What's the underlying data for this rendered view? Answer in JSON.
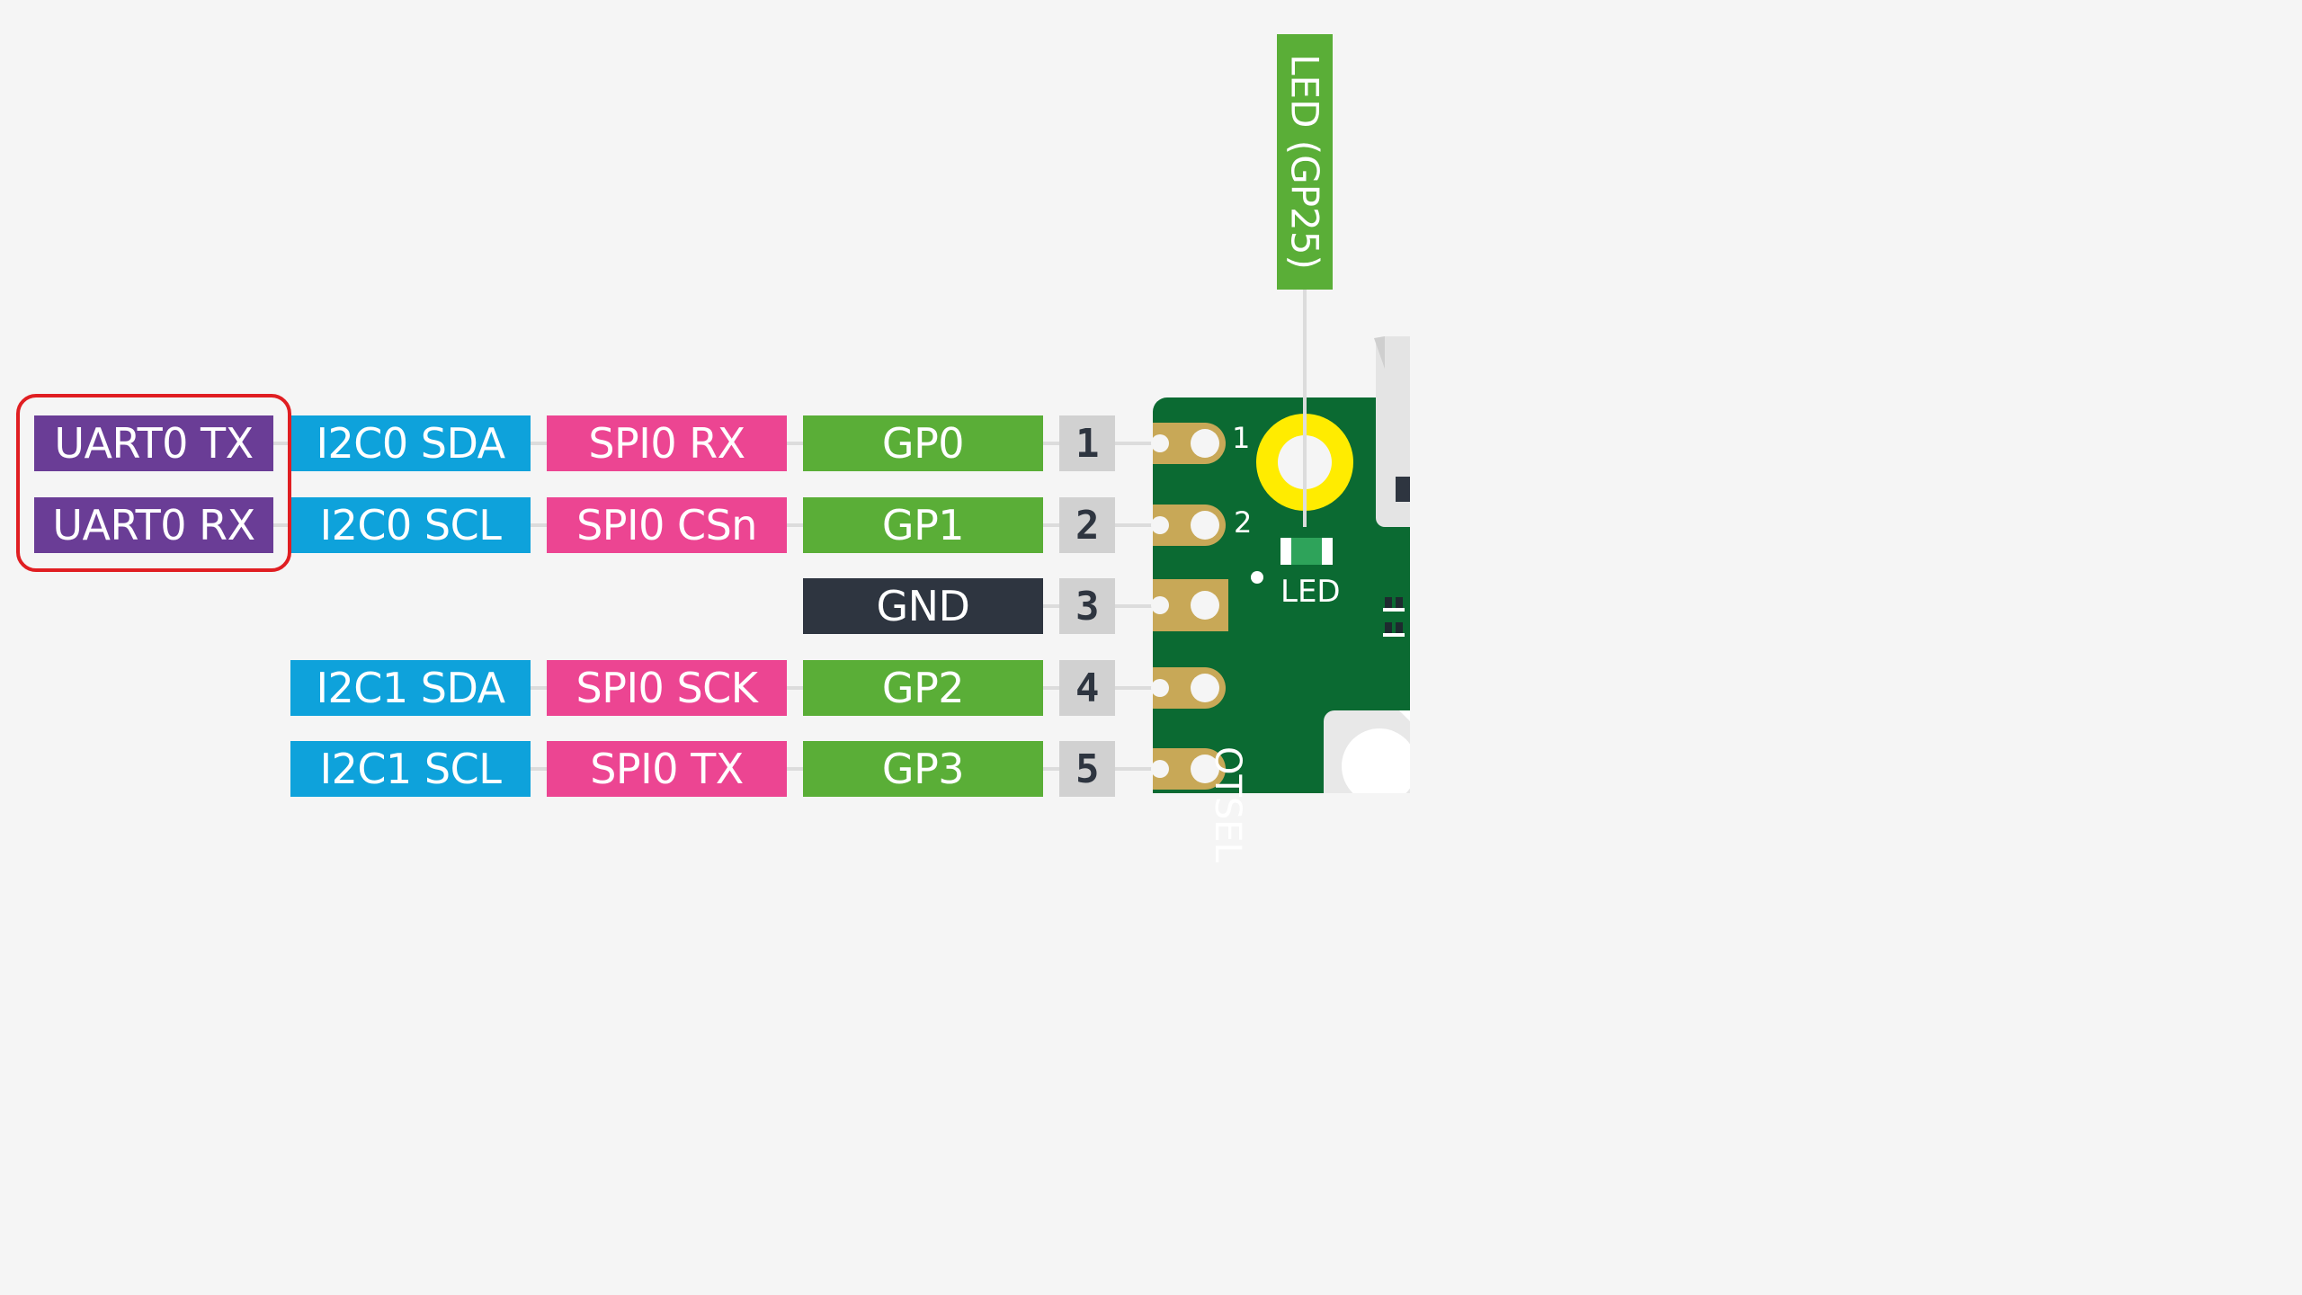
{
  "colors": {
    "uart": "#6a3d96",
    "i2c": "#0ea2db",
    "spi": "#ec4592",
    "gpio": "#5aae37",
    "ground": "#2e3540",
    "pin_number_bg": "#d1d1d1",
    "board_green": "#0b6a32",
    "pad_gold": "#c8a857",
    "led_ring": "#ffec00",
    "highlight_red": "#e01e22"
  },
  "rows": [
    {
      "pin": "1",
      "gpio": "GP0",
      "spi": "SPI0 RX",
      "i2c": "I2C0 SDA",
      "uart": "UART0 TX"
    },
    {
      "pin": "2",
      "gpio": "GP1",
      "spi": "SPI0 CSn",
      "i2c": "I2C0 SCL",
      "uart": "UART0 RX"
    },
    {
      "pin": "3",
      "ground": "GND"
    },
    {
      "pin": "4",
      "gpio": "GP2",
      "spi": "SPI0 SCK",
      "i2c": "I2C1 SDA"
    },
    {
      "pin": "5",
      "gpio": "GP3",
      "spi": "SPI0 TX",
      "i2c": "I2C1 SCL"
    }
  ],
  "led_callout": "LED (GP25)",
  "board": {
    "pad_label_1": "1",
    "pad_label_2": "2",
    "led_label": "LED",
    "bootsel_partial": "OTSEL"
  }
}
